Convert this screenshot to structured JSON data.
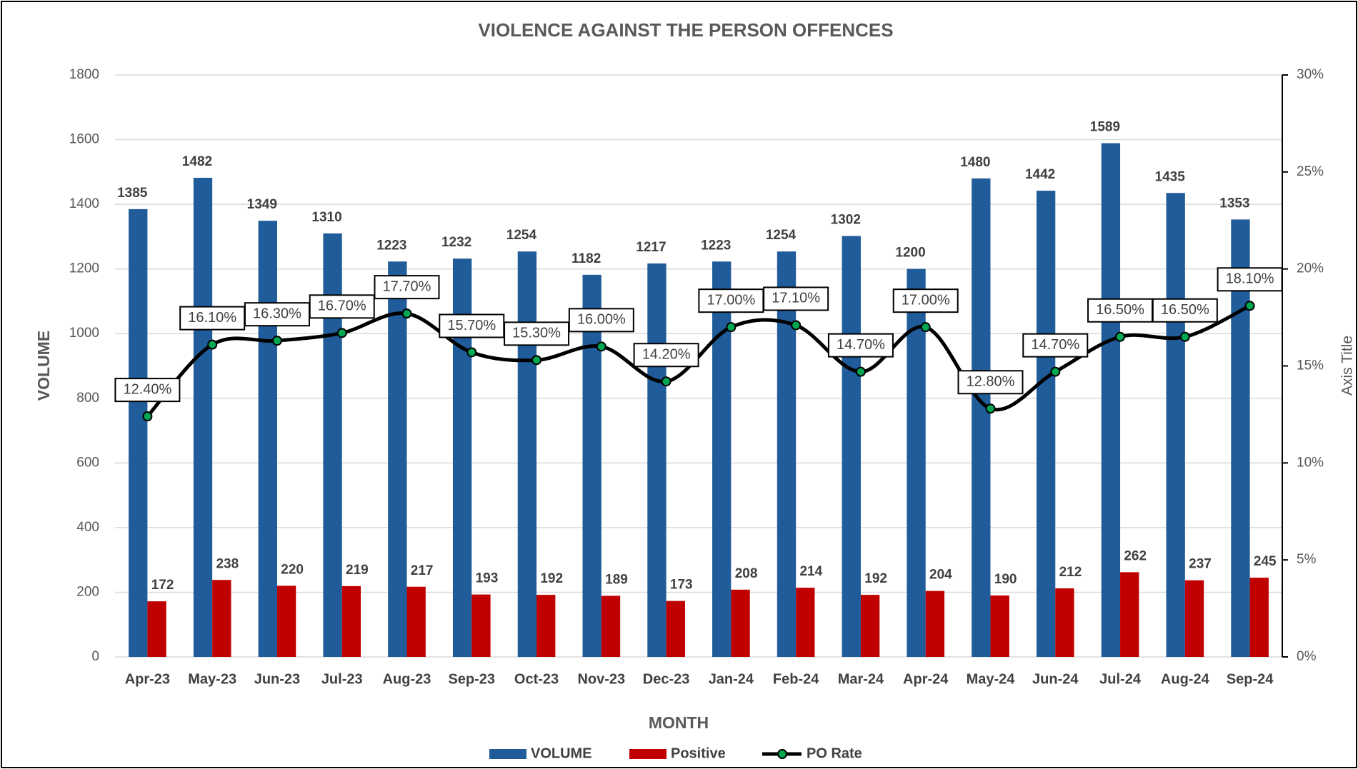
{
  "chart_data": {
    "type": "bar_line",
    "title": "VIOLENCE AGAINST THE PERSON OFFENCES",
    "x_label": "MONTH",
    "y_label": "VOLUME",
    "y2_label": "Axis Title",
    "categories": [
      "Apr-23",
      "May-23",
      "Jun-23",
      "Jul-23",
      "Aug-23",
      "Sep-23",
      "Oct-23",
      "Nov-23",
      "Dec-23",
      "Jan-24",
      "Feb-24",
      "Mar-24",
      "Apr-24",
      "May-24",
      "Jun-24",
      "Jul-24",
      "Aug-24",
      "Sep-24"
    ],
    "series": [
      {
        "name": "VOLUME",
        "type": "bar",
        "color": "#1f5c99",
        "values": [
          1385,
          1482,
          1349,
          1310,
          1223,
          1232,
          1254,
          1182,
          1217,
          1223,
          1254,
          1302,
          1200,
          1480,
          1442,
          1589,
          1435,
          1353
        ]
      },
      {
        "name": "Positive",
        "type": "bar",
        "color": "#c00000",
        "values": [
          172,
          238,
          220,
          219,
          217,
          193,
          192,
          189,
          173,
          208,
          214,
          192,
          204,
          190,
          212,
          262,
          237,
          245
        ]
      },
      {
        "name": "PO Rate",
        "type": "line",
        "axis": "y2",
        "color": "#000000",
        "marker_color": "#00a651",
        "values": [
          12.4,
          16.1,
          16.3,
          16.7,
          17.7,
          15.7,
          15.3,
          16.0,
          14.2,
          17.0,
          17.1,
          14.7,
          17.0,
          12.8,
          14.7,
          16.5,
          16.5,
          18.1
        ],
        "value_labels": [
          "12.40%",
          "16.10%",
          "16.30%",
          "16.70%",
          "17.70%",
          "15.70%",
          "15.30%",
          "16.00%",
          "14.20%",
          "17.00%",
          "17.10%",
          "14.70%",
          "17.00%",
          "12.80%",
          "14.70%",
          "16.50%",
          "16.50%",
          "18.10%"
        ]
      }
    ],
    "ylim": [
      0,
      1800
    ],
    "yticks": [
      0,
      200,
      400,
      600,
      800,
      1000,
      1200,
      1400,
      1600,
      1800
    ],
    "y2lim": [
      0,
      30
    ],
    "y2ticks": [
      {
        "value": 0,
        "label": "0%"
      },
      {
        "value": 5,
        "label": "5%"
      },
      {
        "value": 10,
        "label": "10%"
      },
      {
        "value": 15,
        "label": "15%"
      },
      {
        "value": 20,
        "label": "20%"
      },
      {
        "value": 25,
        "label": "25%"
      },
      {
        "value": 30,
        "label": "30%"
      }
    ],
    "grid": true,
    "legend": "bottom"
  }
}
